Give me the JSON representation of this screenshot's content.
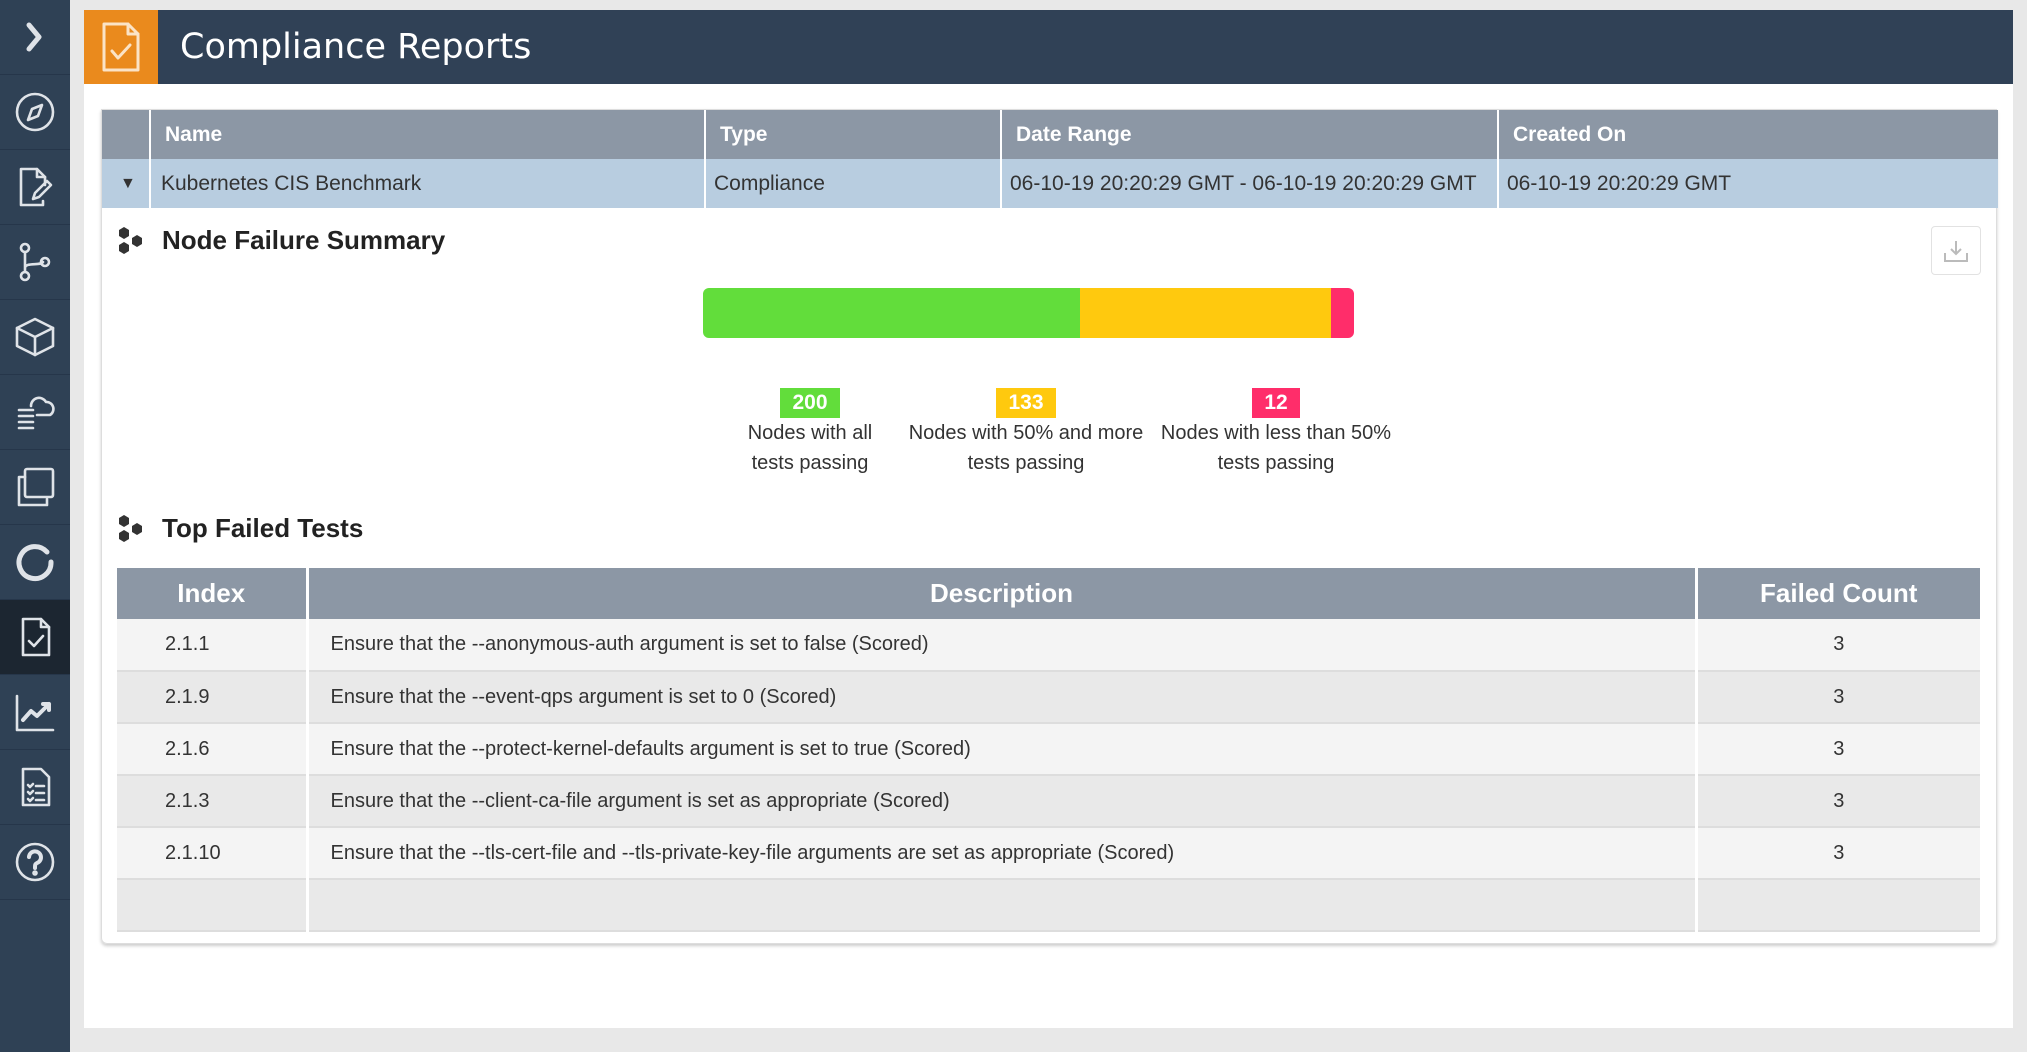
{
  "sidebar": {
    "items": [
      {
        "icon": "chevron-right-icon"
      },
      {
        "icon": "compass-icon"
      },
      {
        "icon": "document-edit-icon"
      },
      {
        "icon": "git-branch-icon"
      },
      {
        "icon": "cube-icon"
      },
      {
        "icon": "cloud-server-icon"
      },
      {
        "icon": "copy-icon"
      },
      {
        "icon": "refresh-icon"
      },
      {
        "icon": "compliance-icon",
        "active": true
      },
      {
        "icon": "chart-icon"
      },
      {
        "icon": "checklist-icon"
      },
      {
        "icon": "help-icon"
      }
    ]
  },
  "header": {
    "title": "Compliance Reports",
    "accent": "#ea8a1d"
  },
  "reports": {
    "columns": [
      "Name",
      "Type",
      "Date Range",
      "Created On"
    ],
    "row": {
      "name": "Kubernetes CIS Benchmark",
      "type": "Compliance",
      "date_range": "06-10-19 20:20:29 GMT - 06-10-19 20:20:29 GMT",
      "created_on": "06-10-19 20:20:29 GMT"
    }
  },
  "node_failure": {
    "title": "Node Failure Summary",
    "segments": [
      {
        "value": 200,
        "label_line1": "Nodes with all",
        "label_line2": "tests passing",
        "color": "#62dd3b"
      },
      {
        "value": 133,
        "label_line1": "Nodes with 50% and more",
        "label_line2": "tests passing",
        "color": "#ffc90e"
      },
      {
        "value": 12,
        "label_line1": "Nodes with less than 50%",
        "label_line2": "tests passing",
        "color": "#ff2d6a"
      }
    ]
  },
  "top_failed": {
    "title": "Top Failed Tests",
    "columns": [
      "Index",
      "Description",
      "Failed Count"
    ],
    "rows": [
      {
        "index": "2.1.1",
        "description": "Ensure that the --anonymous-auth argument is set to false (Scored)",
        "count": "3"
      },
      {
        "index": "2.1.9",
        "description": "Ensure that the --event-qps argument is set to 0 (Scored)",
        "count": "3"
      },
      {
        "index": "2.1.6",
        "description": "Ensure that the --protect-kernel-defaults argument is set to true (Scored)",
        "count": "3"
      },
      {
        "index": "2.1.3",
        "description": "Ensure that the --client-ca-file argument is set as appropriate (Scored)",
        "count": "3"
      },
      {
        "index": "2.1.10",
        "description": "Ensure that the --tls-cert-file and --tls-private-key-file arguments are set as appropriate (Scored)",
        "count": "3"
      }
    ]
  }
}
